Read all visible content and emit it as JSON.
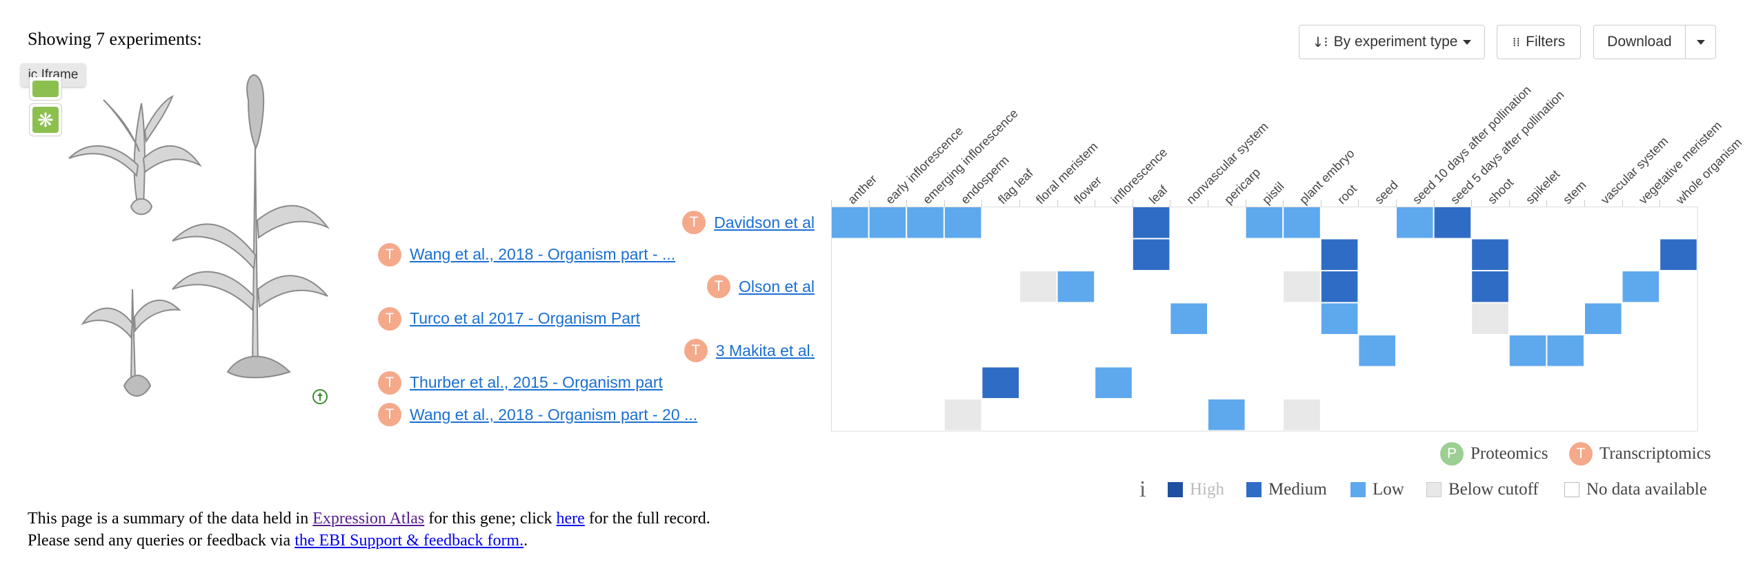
{
  "summary": {
    "showing": "Showing 7 experiments:"
  },
  "toolbar": {
    "sort_label": "By experiment type",
    "filters_label": "Filters",
    "download_label": "Download"
  },
  "anatomogram": {
    "tooltip": "ic Iframe"
  },
  "heatmap": {
    "columns": [
      "anther",
      "early inflorescence",
      "emerging inflorescence",
      "endosperm",
      "flag leaf",
      "floral meristem",
      "flower",
      "inflorescence",
      "leaf",
      "nonvascular system",
      "pericarp",
      "pistil",
      "plant embryo",
      "root",
      "seed",
      "seed 10 days after pollination",
      "seed 5 days after pollination",
      "shoot",
      "spikelet",
      "stem",
      "vascular system",
      "vegetative meristem",
      "whole organism"
    ],
    "rows": [
      {
        "label": "Davidson et al",
        "type": "T",
        "align": "right",
        "cells": {
          "0": "low",
          "1": "low",
          "2": "low",
          "3": "low",
          "8": "medium",
          "11": "low",
          "12": "low",
          "15": "low",
          "16": "medium"
        }
      },
      {
        "label": "Wang et al., 2018 - Organism part - ...",
        "type": "T",
        "align": "left",
        "cells": {
          "8": "medium",
          "13": "medium",
          "17": "medium",
          "22": "medium"
        }
      },
      {
        "label": "Olson et al",
        "type": "T",
        "align": "right",
        "cells": {
          "5": "below",
          "6": "low",
          "12": "below",
          "13": "medium",
          "17": "medium",
          "21": "low"
        }
      },
      {
        "label": "Turco et al 2017 - Organism Part",
        "type": "T",
        "align": "left",
        "cells": {
          "9": "low",
          "13": "low",
          "17": "below",
          "20": "low"
        }
      },
      {
        "label": "3 Makita et al.",
        "type": "T",
        "align": "right",
        "cells": {
          "14": "low",
          "18": "low",
          "19": "low"
        }
      },
      {
        "label": "Thurber et al., 2015 - Organism part",
        "type": "T",
        "align": "left",
        "cells": {
          "4": "medium",
          "7": "low"
        }
      },
      {
        "label": "Wang et al., 2018 - Organism part - 20 ...",
        "type": "T",
        "align": "left",
        "cells": {
          "3": "below",
          "10": "low",
          "12": "below"
        }
      }
    ],
    "colors": {
      "high": "#1e4fa0",
      "medium": "#2f6cc5",
      "low": "#5ea8ee",
      "below": "#e8e8e8",
      "none": "#ffffff"
    }
  },
  "legend": {
    "proteomics": "Proteomics",
    "proteomics_letter": "P",
    "transcriptomics": "Transcriptomics",
    "transcriptomics_letter": "T",
    "info": "i",
    "high": "High",
    "medium": "Medium",
    "low": "Low",
    "below": "Below cutoff",
    "none": "No data available",
    "proteomics_color": "#9ccf93",
    "transcriptomics_color": "#f4a98b"
  },
  "footer": {
    "line1_a": "This page is a summary of the data held in ",
    "line1_link": "Expression Atlas",
    "line1_b": " for this gene; click ",
    "line1_here": "here",
    "line1_c": " for the full record.",
    "line2_a": "Please send any queries or feedback via ",
    "line2_link": "the EBI Support & feedback form.",
    "line2_b": "."
  }
}
